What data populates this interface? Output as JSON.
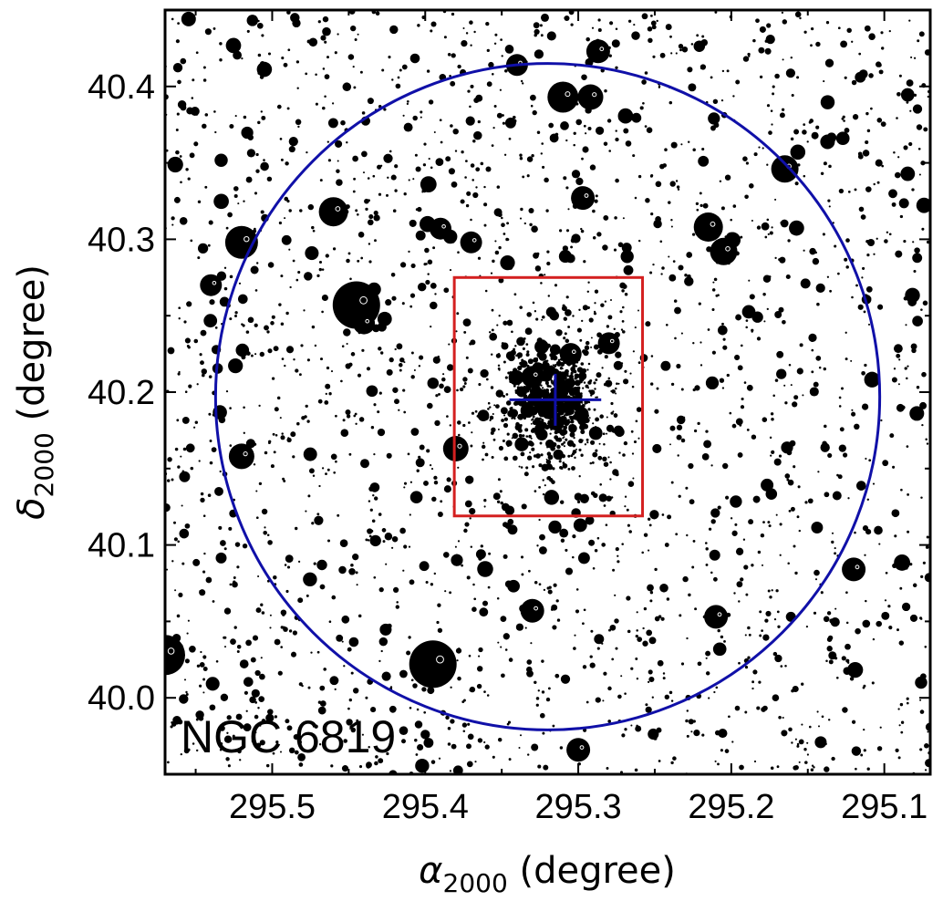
{
  "chart_data": {
    "type": "scatter",
    "title": "",
    "annotation": "NGC 6819",
    "xlabel": {
      "symbol": "α",
      "subscript": "2000",
      "unit": " (degree)"
    },
    "ylabel": {
      "symbol": "δ",
      "subscript": "2000",
      "unit": " (degree)"
    },
    "xlim": [
      295.57,
      295.07
    ],
    "ylim": [
      39.95,
      40.45
    ],
    "x_reversed": true,
    "xticks": [
      295.5,
      295.4,
      295.3,
      295.2,
      295.1
    ],
    "xtick_labels": [
      "295.5",
      "295.4",
      "295.3",
      "295.2",
      "295.1"
    ],
    "yticks": [
      40.0,
      40.1,
      40.2,
      40.3,
      40.4
    ],
    "ytick_labels": [
      "40.0",
      "40.1",
      "40.2",
      "40.3",
      "40.4"
    ],
    "grid": false,
    "cluster_center": {
      "ra": 295.315,
      "dec": 40.195
    },
    "cluster_radius_circle": {
      "ra": 295.32,
      "dec": 40.197,
      "radius_ra": 0.217,
      "radius_dec": 0.218,
      "color": "#1010a8"
    },
    "core_box": {
      "ra_min": 295.258,
      "ra_max": 295.381,
      "dec_min": 40.119,
      "dec_max": 40.275,
      "color": "#d42020"
    },
    "bright_stars": [
      {
        "ra": 295.445,
        "dec": 40.257,
        "mag": 1.0
      },
      {
        "ra": 295.395,
        "dec": 40.022,
        "mag": 1.0
      },
      {
        "ra": 295.57,
        "dec": 40.028,
        "mag": 0.8
      },
      {
        "ra": 295.52,
        "dec": 40.298,
        "mag": 0.6
      },
      {
        "ra": 295.46,
        "dec": 40.318,
        "mag": 0.5
      },
      {
        "ra": 295.31,
        "dec": 40.393,
        "mag": 0.55
      },
      {
        "ra": 295.215,
        "dec": 40.308,
        "mag": 0.5
      },
      {
        "ra": 295.205,
        "dec": 40.292,
        "mag": 0.45
      },
      {
        "ra": 295.165,
        "dec": 40.346,
        "mag": 0.45
      },
      {
        "ra": 295.292,
        "dec": 40.393,
        "mag": 0.4
      },
      {
        "ra": 295.52,
        "dec": 40.158,
        "mag": 0.4
      },
      {
        "ra": 295.12,
        "dec": 40.084,
        "mag": 0.35
      },
      {
        "ra": 295.3,
        "dec": 39.966,
        "mag": 0.35
      },
      {
        "ra": 295.33,
        "dec": 40.057,
        "mag": 0.35
      },
      {
        "ra": 295.21,
        "dec": 40.053,
        "mag": 0.35
      },
      {
        "ra": 295.38,
        "dec": 40.163,
        "mag": 0.4
      },
      {
        "ra": 295.287,
        "dec": 40.423,
        "mag": 0.35
      },
      {
        "ra": 295.34,
        "dec": 40.414,
        "mag": 0.3
      },
      {
        "ra": 295.39,
        "dec": 40.307,
        "mag": 0.3
      },
      {
        "ra": 295.297,
        "dec": 40.327,
        "mag": 0.35
      },
      {
        "ra": 295.28,
        "dec": 40.232,
        "mag": 0.3
      },
      {
        "ra": 295.37,
        "dec": 40.298,
        "mag": 0.3
      },
      {
        "ra": 295.54,
        "dec": 40.27,
        "mag": 0.3
      },
      {
        "ra": 295.44,
        "dec": 40.245,
        "mag": 0.3
      },
      {
        "ra": 295.305,
        "dec": 40.225,
        "mag": 0.3
      },
      {
        "ra": 295.33,
        "dec": 40.21,
        "mag": 0.3
      }
    ]
  }
}
